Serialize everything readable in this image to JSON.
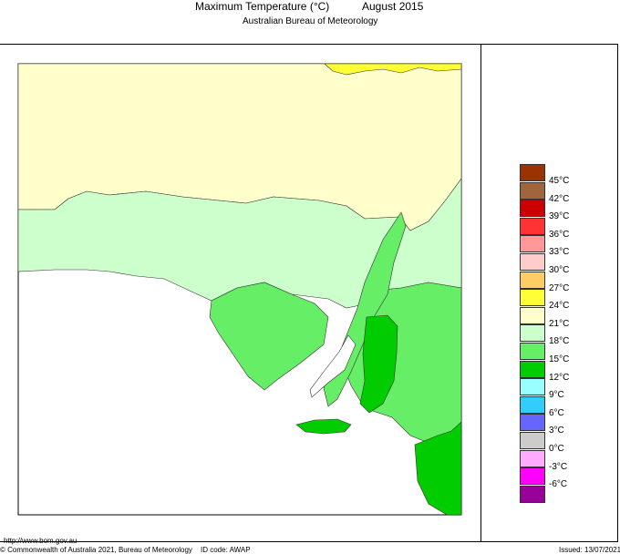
{
  "header": {
    "title": "Maximum Temperature (°C)",
    "date": "August 2015",
    "subtitle": "Australian Bureau of Meteorology"
  },
  "legend": [
    {
      "label": "45°C",
      "color": "#993300"
    },
    {
      "label": "42°C",
      "color": "#a0653a"
    },
    {
      "label": "39°C",
      "color": "#cc0000"
    },
    {
      "label": "36°C",
      "color": "#ff3333"
    },
    {
      "label": "33°C",
      "color": "#ff9999"
    },
    {
      "label": "30°C",
      "color": "#ffcccc"
    },
    {
      "label": "27°C",
      "color": "#ffcc66"
    },
    {
      "label": "24°C",
      "color": "#ffff33"
    },
    {
      "label": "21°C",
      "color": "#ffffcc"
    },
    {
      "label": "18°C",
      "color": "#ccffcc"
    },
    {
      "label": "15°C",
      "color": "#66ee66"
    },
    {
      "label": "12°C",
      "color": "#00cc00"
    },
    {
      "label": "9°C",
      "color": "#99ffff"
    },
    {
      "label": "6°C",
      "color": "#33ccff"
    },
    {
      "label": "3°C",
      "color": "#6666ff"
    },
    {
      "label": "0°C",
      "color": "#cccccc"
    },
    {
      "label": "-3°C",
      "color": "#ffaaff"
    },
    {
      "label": "-6°C",
      "color": "#ff00ff"
    },
    {
      "label": "",
      "color": "#990099"
    }
  ],
  "footer": {
    "url": "http://www.bom.gov.au",
    "copyright": "© Commonwealth of Australia 2021, Bureau of Meteorology",
    "id_code": "ID code: AWAP",
    "issued": "Issued: 13/07/2021"
  }
}
